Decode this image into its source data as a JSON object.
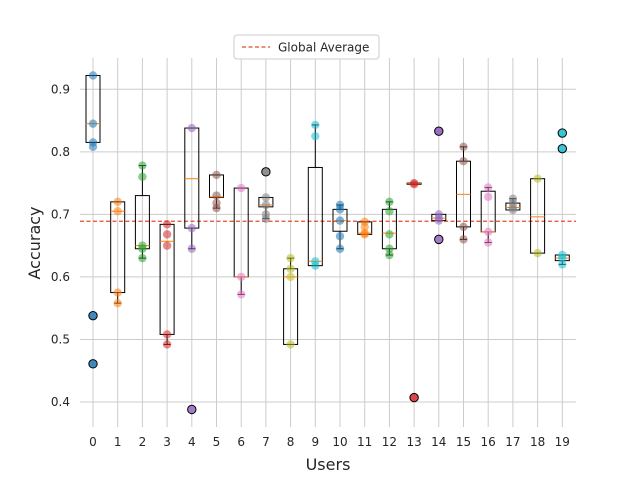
{
  "chart_data": {
    "type": "box",
    "xlabel": "Users",
    "ylabel": "Accuracy",
    "ylim": [
      0.36,
      0.95
    ],
    "yticks": [
      0.4,
      0.5,
      0.6,
      0.7,
      0.8,
      0.9
    ],
    "ytick_labels": [
      "0.4",
      "0.5",
      "0.6",
      "0.7",
      "0.8",
      "0.9"
    ],
    "categories": [
      "0",
      "1",
      "2",
      "3",
      "4",
      "5",
      "6",
      "7",
      "8",
      "9",
      "10",
      "11",
      "12",
      "13",
      "14",
      "15",
      "16",
      "17",
      "18",
      "19"
    ],
    "grid": true,
    "legend_position": "top-center",
    "global_average": {
      "label": "Global Average",
      "value": 0.689,
      "color": "#e8492a"
    },
    "median_color": "#ff7f0e",
    "palette": [
      "#1f77b4",
      "#ff7f0e",
      "#2ca02c",
      "#d62728",
      "#9467bd",
      "#8c564b",
      "#e377c2",
      "#7f7f7f",
      "#bcbd22",
      "#17becf"
    ],
    "boxes": [
      {
        "user": "0",
        "q1": 0.815,
        "med": 0.845,
        "q3": 0.922,
        "lo": 0.815,
        "hi": 0.922,
        "fliers": [
          0.538,
          0.461
        ],
        "points": [
          0.922,
          0.845,
          0.815,
          0.808
        ]
      },
      {
        "user": "1",
        "q1": 0.575,
        "med": 0.705,
        "q3": 0.72,
        "lo": 0.558,
        "hi": 0.72,
        "fliers": [],
        "points": [
          0.72,
          0.705,
          0.575,
          0.558
        ]
      },
      {
        "user": "2",
        "q1": 0.645,
        "med": 0.65,
        "q3": 0.73,
        "lo": 0.63,
        "hi": 0.778,
        "fliers": [],
        "points": [
          0.778,
          0.76,
          0.65,
          0.645,
          0.63
        ]
      },
      {
        "user": "3",
        "q1": 0.508,
        "med": 0.657,
        "q3": 0.684,
        "lo": 0.492,
        "hi": 0.684,
        "fliers": [],
        "points": [
          0.684,
          0.668,
          0.65,
          0.508,
          0.492
        ]
      },
      {
        "user": "4",
        "q1": 0.678,
        "med": 0.757,
        "q3": 0.838,
        "lo": 0.645,
        "hi": 0.838,
        "fliers": [
          0.388
        ],
        "points": [
          0.838,
          0.678,
          0.645
        ]
      },
      {
        "user": "5",
        "q1": 0.727,
        "med": 0.728,
        "q3": 0.763,
        "lo": 0.71,
        "hi": 0.763,
        "fliers": [],
        "points": [
          0.763,
          0.73,
          0.718,
          0.71
        ]
      },
      {
        "user": "6",
        "q1": 0.6,
        "med": 0.6,
        "q3": 0.742,
        "lo": 0.572,
        "hi": 0.742,
        "fliers": [],
        "points": [
          0.742,
          0.6,
          0.572
        ]
      },
      {
        "user": "7",
        "q1": 0.712,
        "med": 0.715,
        "q3": 0.727,
        "lo": 0.693,
        "hi": 0.727,
        "fliers": [
          0.768
        ],
        "points": [
          0.727,
          0.715,
          0.7,
          0.693
        ]
      },
      {
        "user": "8",
        "q1": 0.492,
        "med": 0.6,
        "q3": 0.613,
        "lo": 0.492,
        "hi": 0.63,
        "fliers": [],
        "points": [
          0.63,
          0.613,
          0.6,
          0.492
        ]
      },
      {
        "user": "9",
        "q1": 0.618,
        "med": 0.625,
        "q3": 0.775,
        "lo": 0.618,
        "hi": 0.843,
        "fliers": [],
        "points": [
          0.843,
          0.825,
          0.625,
          0.618
        ]
      },
      {
        "user": "10",
        "q1": 0.673,
        "med": 0.69,
        "q3": 0.708,
        "lo": 0.645,
        "hi": 0.715,
        "fliers": [],
        "points": [
          0.715,
          0.708,
          0.69,
          0.665,
          0.645
        ]
      },
      {
        "user": "11",
        "q1": 0.668,
        "med": 0.67,
        "q3": 0.688,
        "lo": 0.668,
        "hi": 0.688,
        "fliers": [],
        "points": [
          0.688,
          0.68,
          0.67,
          0.668
        ]
      },
      {
        "user": "12",
        "q1": 0.645,
        "med": 0.67,
        "q3": 0.708,
        "lo": 0.635,
        "hi": 0.72,
        "fliers": [],
        "points": [
          0.72,
          0.705,
          0.668,
          0.645,
          0.635
        ]
      },
      {
        "user": "13",
        "q1": 0.748,
        "med": 0.749,
        "q3": 0.75,
        "lo": 0.748,
        "hi": 0.75,
        "fliers": [
          0.407
        ],
        "points": [
          0.75,
          0.748
        ]
      },
      {
        "user": "14",
        "q1": 0.69,
        "med": 0.694,
        "q3": 0.7,
        "lo": 0.69,
        "hi": 0.7,
        "fliers": [
          0.833,
          0.66
        ],
        "points": [
          0.833,
          0.7,
          0.694,
          0.69
        ]
      },
      {
        "user": "15",
        "q1": 0.68,
        "med": 0.732,
        "q3": 0.785,
        "lo": 0.66,
        "hi": 0.808,
        "fliers": [],
        "points": [
          0.808,
          0.785,
          0.68,
          0.66
        ]
      },
      {
        "user": "16",
        "q1": 0.672,
        "med": 0.672,
        "q3": 0.737,
        "lo": 0.655,
        "hi": 0.743,
        "fliers": [],
        "points": [
          0.743,
          0.728,
          0.672,
          0.655
        ]
      },
      {
        "user": "17",
        "q1": 0.707,
        "med": 0.711,
        "q3": 0.718,
        "lo": 0.707,
        "hi": 0.725,
        "fliers": [],
        "points": [
          0.725,
          0.718,
          0.711,
          0.707
        ]
      },
      {
        "user": "18",
        "q1": 0.638,
        "med": 0.696,
        "q3": 0.757,
        "lo": 0.638,
        "hi": 0.757,
        "fliers": [],
        "points": [
          0.757,
          0.638
        ]
      },
      {
        "user": "19",
        "q1": 0.626,
        "med": 0.63,
        "q3": 0.635,
        "lo": 0.62,
        "hi": 0.635,
        "fliers": [
          0.83,
          0.805
        ],
        "points": [
          0.635,
          0.63,
          0.62
        ]
      }
    ]
  }
}
